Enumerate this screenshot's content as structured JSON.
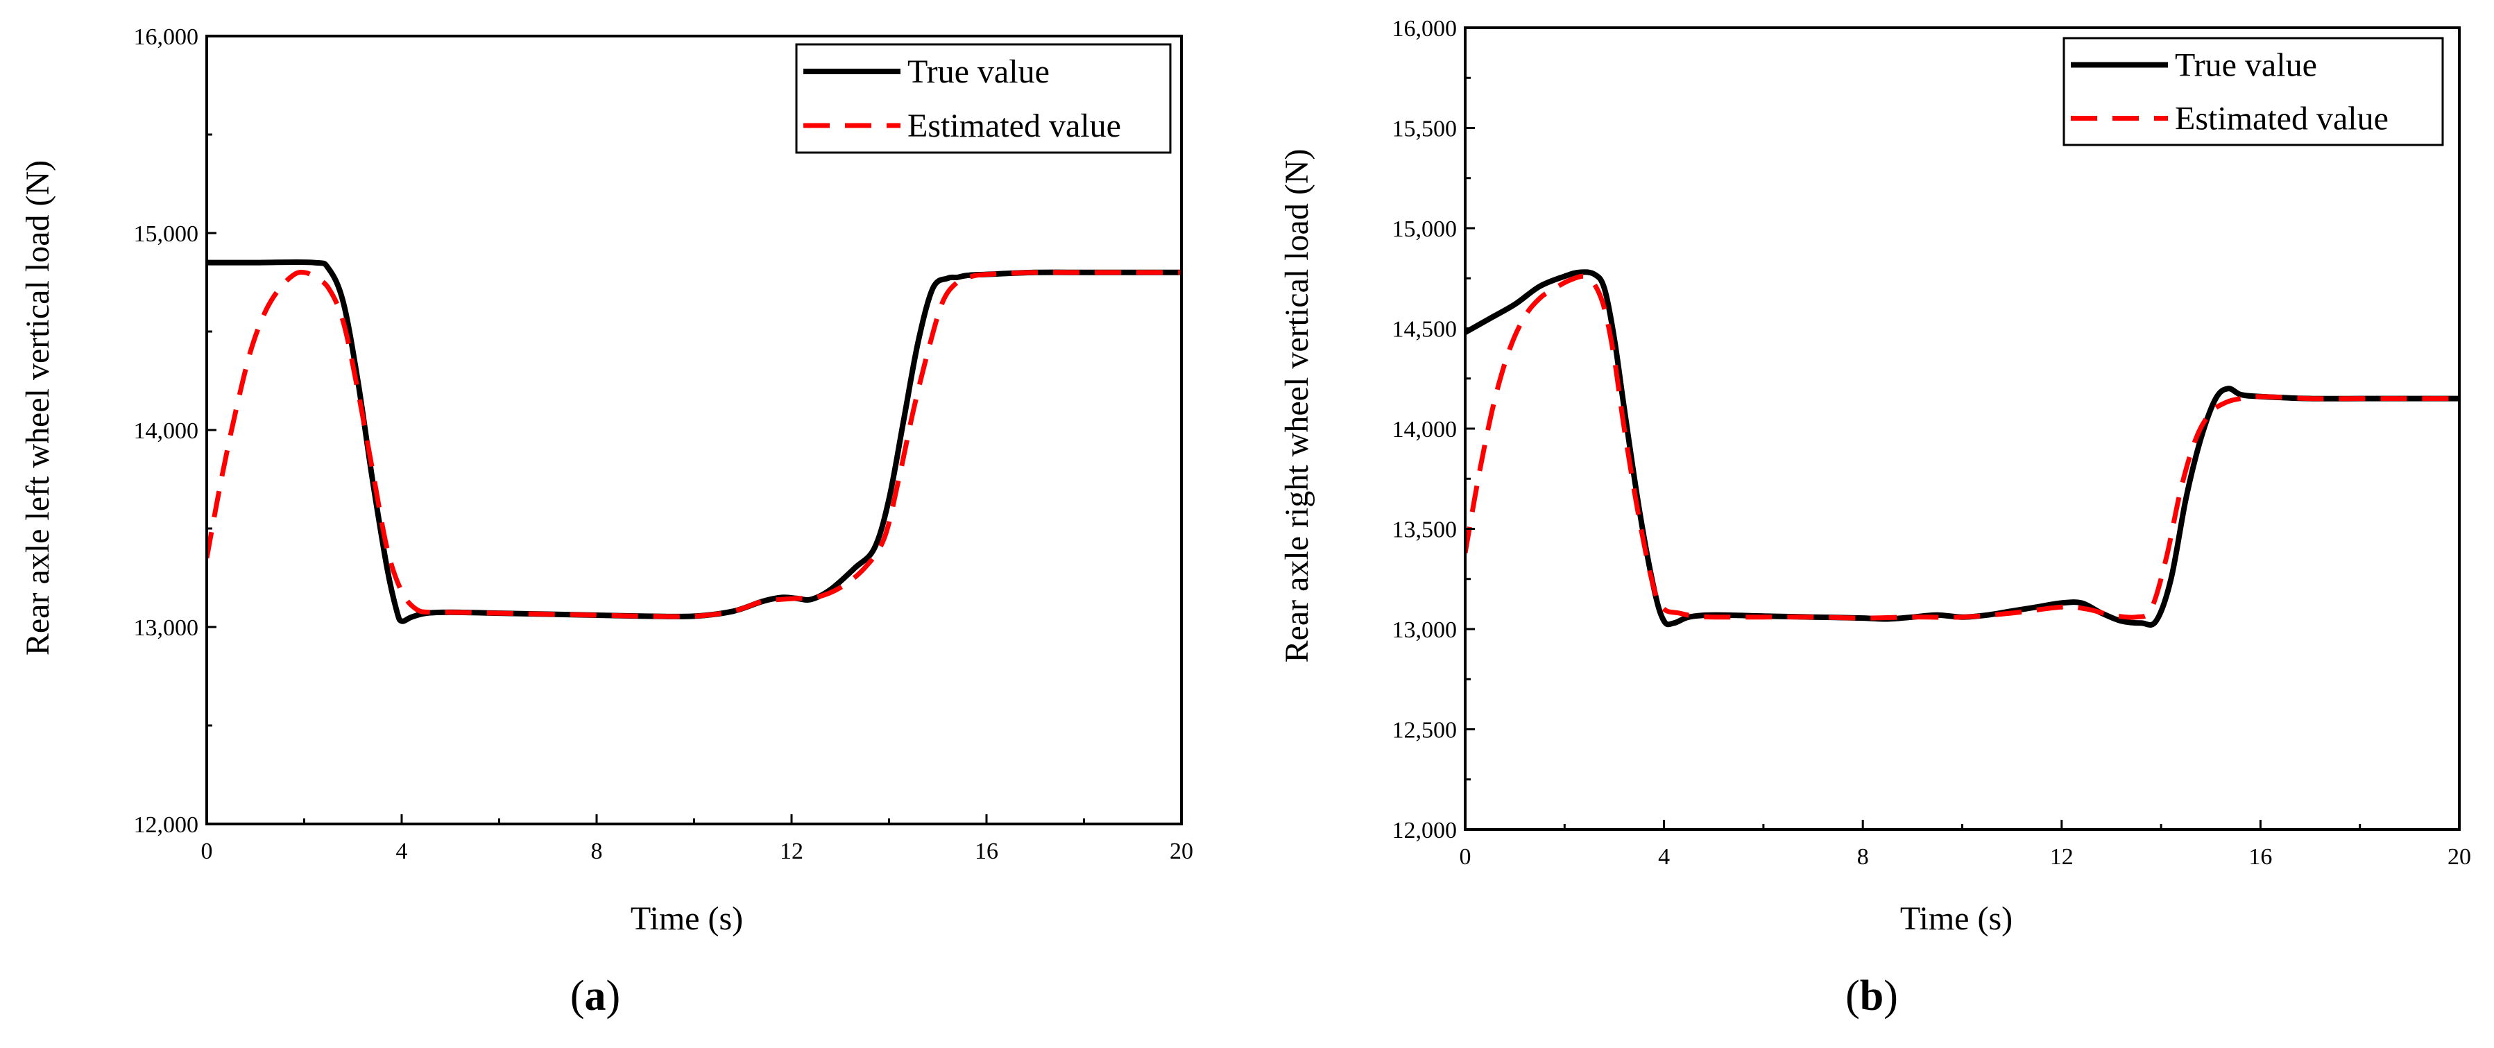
{
  "chart_data": [
    {
      "type": "line",
      "panel_label": "a",
      "xlabel": "Time (s)",
      "ylabel": "Rear axle left wheel vertical load (N)",
      "xlim": [
        0,
        20
      ],
      "ylim": [
        12000,
        16000
      ],
      "xticks": [
        0,
        4,
        8,
        12,
        16,
        20
      ],
      "xtick_labels": [
        "0",
        "4",
        "8",
        "12",
        "16",
        "20"
      ],
      "yticks": [
        12000,
        13000,
        14000,
        15000,
        16000
      ],
      "ytick_labels": [
        "12,000",
        "13,000",
        "14,000",
        "15,000",
        "16,000"
      ],
      "legend_position": "top-right",
      "series": [
        {
          "name": "True value",
          "color": "#000000",
          "style": "solid",
          "x": [
            0,
            1,
            2.2,
            2.5,
            2.8,
            3.1,
            3.4,
            3.7,
            3.9,
            4.0,
            4.2,
            4.5,
            5,
            6,
            7,
            8,
            9,
            10,
            10.8,
            11.4,
            11.8,
            12.1,
            12.4,
            12.8,
            13.3,
            13.7,
            14.0,
            14.3,
            14.6,
            14.9,
            15.2,
            15.4,
            15.6,
            16,
            17,
            18,
            19,
            20
          ],
          "values": [
            14850,
            14850,
            14850,
            14820,
            14650,
            14250,
            13750,
            13300,
            13080,
            13030,
            13050,
            13070,
            13075,
            13070,
            13065,
            13060,
            13055,
            13055,
            13080,
            13130,
            13150,
            13145,
            13140,
            13190,
            13300,
            13400,
            13650,
            14050,
            14450,
            14720,
            14770,
            14775,
            14785,
            14790,
            14800,
            14800,
            14800,
            14800
          ]
        },
        {
          "name": "Estimated value",
          "color": "#ff0000",
          "style": "dashed",
          "x": [
            0,
            0.3,
            0.6,
            0.9,
            1.2,
            1.5,
            1.8,
            2.0,
            2.2,
            2.5,
            2.8,
            3.1,
            3.4,
            3.7,
            4.0,
            4.3,
            4.6,
            5,
            6,
            7,
            8,
            9,
            10,
            10.8,
            11.4,
            11.8,
            12.1,
            12.5,
            13.0,
            13.5,
            13.9,
            14.2,
            14.5,
            14.8,
            15.1,
            15.4,
            15.7,
            16,
            17,
            18,
            19,
            20
          ],
          "values": [
            13350,
            13750,
            14100,
            14400,
            14600,
            14720,
            14790,
            14800,
            14780,
            14720,
            14550,
            14200,
            13800,
            13400,
            13180,
            13090,
            13075,
            13075,
            13070,
            13065,
            13060,
            13055,
            13055,
            13080,
            13130,
            13140,
            13145,
            13150,
            13200,
            13300,
            13450,
            13750,
            14100,
            14400,
            14650,
            14750,
            14780,
            14790,
            14800,
            14800,
            14800,
            14800
          ]
        }
      ]
    },
    {
      "type": "line",
      "panel_label": "b",
      "xlabel": "Time (s)",
      "ylabel": "Rear axle right wheel vertical load (N)",
      "xlim": [
        0,
        20
      ],
      "ylim": [
        12000,
        16000
      ],
      "xticks": [
        0,
        4,
        8,
        12,
        16,
        20
      ],
      "xtick_labels": [
        "0",
        "4",
        "8",
        "12",
        "16",
        "20"
      ],
      "yticks": [
        12000,
        12500,
        13000,
        13500,
        14000,
        14500,
        15000,
        15500,
        16000
      ],
      "ytick_labels": [
        "12,000",
        "12,500",
        "13,000",
        "13,500",
        "14,000",
        "14,500",
        "15,000",
        "15,500",
        "16,000"
      ],
      "legend_position": "top-right",
      "series": [
        {
          "name": "True value",
          "color": "#000000",
          "style": "solid",
          "x": [
            0,
            0.5,
            1.0,
            1.5,
            2.0,
            2.3,
            2.6,
            2.8,
            3.0,
            3.2,
            3.5,
            3.8,
            4.0,
            4.2,
            4.5,
            5,
            6,
            7,
            8,
            8.5,
            9,
            9.5,
            10,
            10.5,
            11,
            11.5,
            12,
            12.4,
            12.8,
            13.2,
            13.6,
            13.9,
            14.2,
            14.5,
            14.8,
            15.1,
            15.35,
            15.6,
            16,
            17,
            18,
            19,
            20
          ],
          "values": [
            14480,
            14550,
            14620,
            14710,
            14760,
            14780,
            14770,
            14700,
            14450,
            14100,
            13600,
            13200,
            13040,
            13030,
            13060,
            13070,
            13065,
            13060,
            13055,
            13050,
            13060,
            13070,
            13060,
            13070,
            13090,
            13110,
            13130,
            13130,
            13080,
            13040,
            13030,
            13040,
            13250,
            13650,
            13950,
            14150,
            14200,
            14170,
            14160,
            14150,
            14150,
            14150,
            14150
          ]
        },
        {
          "name": "Estimated value",
          "color": "#ff0000",
          "style": "dashed",
          "x": [
            0,
            0.3,
            0.6,
            0.9,
            1.2,
            1.5,
            1.8,
            2.1,
            2.4,
            2.6,
            2.8,
            3.0,
            3.2,
            3.5,
            3.8,
            4.0,
            4.3,
            4.6,
            5,
            6,
            7,
            8,
            9,
            10,
            11,
            12,
            12.5,
            13,
            13.5,
            13.8,
            14.1,
            14.4,
            14.7,
            15.0,
            15.3,
            15.6,
            16,
            17,
            18,
            19,
            20
          ],
          "values": [
            13380,
            13800,
            14150,
            14400,
            14560,
            14650,
            14700,
            14740,
            14760,
            14720,
            14600,
            14350,
            14000,
            13550,
            13200,
            13100,
            13080,
            13065,
            13060,
            13060,
            13060,
            13055,
            13060,
            13060,
            13080,
            13110,
            13100,
            13070,
            13060,
            13100,
            13350,
            13700,
            13950,
            14080,
            14130,
            14150,
            14160,
            14150,
            14150,
            14150,
            14150
          ]
        }
      ]
    }
  ]
}
